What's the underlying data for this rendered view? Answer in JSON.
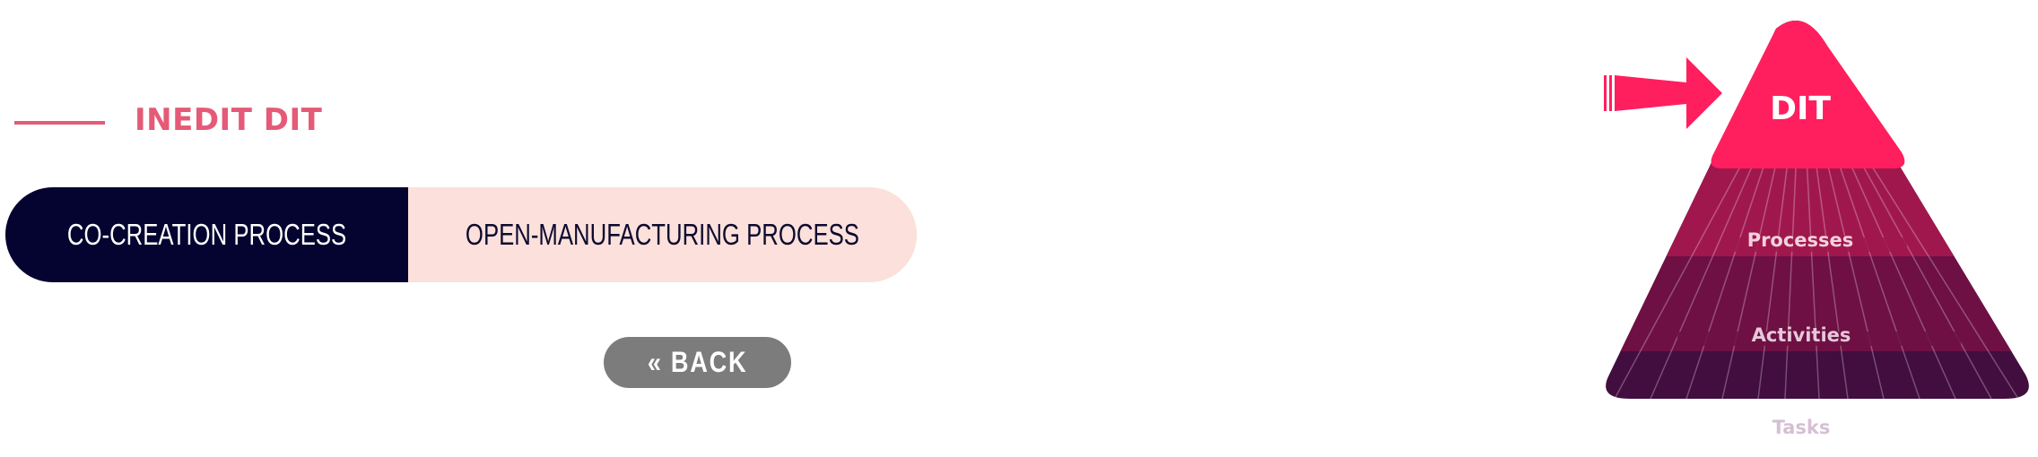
{
  "header": {
    "title": "INEDIT DIT"
  },
  "tabs": [
    {
      "label": "CO-CREATION PROCESS",
      "active": true
    },
    {
      "label": "OPEN-MANUFACTURING PROCESS",
      "active": false
    }
  ],
  "back_button": {
    "label": "« BACK"
  },
  "pyramid": {
    "levels": [
      "DIT",
      "Processes",
      "Activities",
      "Tasks"
    ],
    "highlighted_level": "DIT",
    "indicator_icon": "arrow-right-icon"
  },
  "colors": {
    "accent": "#e55a77",
    "active_tab_bg": "#050430",
    "inactive_tab_bg": "#fce0db",
    "back_button_bg": "#7c7c7c",
    "pyramid_top": "#ff1f5e",
    "pyramid_level_2": "#a0174e",
    "pyramid_level_3": "#6e1043",
    "pyramid_level_4": "#420d3f"
  }
}
